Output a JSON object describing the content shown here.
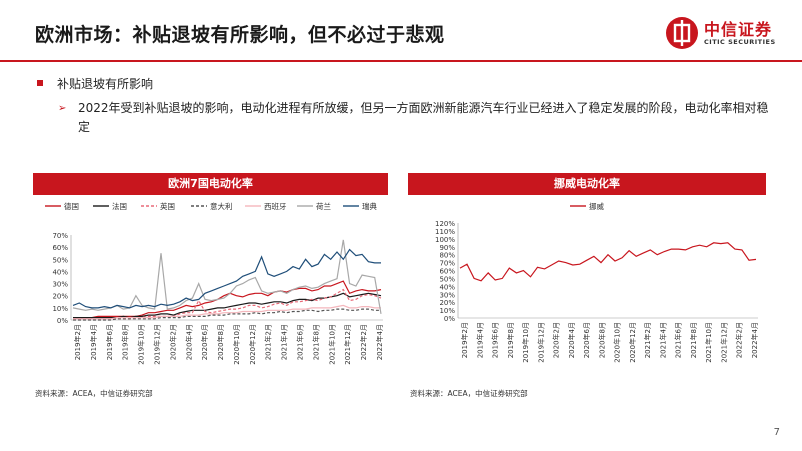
{
  "header": {
    "title": "欧洲市场：补贴退坡有所影响，但不必过于悲观",
    "logo_cn": "中信证券",
    "logo_en": "CITIC SECURITIES"
  },
  "bullets": {
    "level1": "补贴退坡有所影响",
    "level2": "2022年受到补贴退坡的影响，电动化进程有所放缓，但另一方面欧洲新能源汽车行业已经进入了稳定发展的阶段，电动化率相对稳定"
  },
  "left_chart": {
    "header": "欧洲7国电动化率",
    "source": "资料来源：ACEA，中信证券研究部"
  },
  "right_chart": {
    "header": "挪威电动化率",
    "source": "资料来源：ACEA，中信证券研究部"
  },
  "page_number": "7",
  "colors": {
    "brand_red": "#c8161e"
  },
  "chart_data": [
    {
      "type": "line",
      "title": "欧洲7国电动化率",
      "xlabel": "",
      "ylabel": "",
      "ylim": [
        0,
        70
      ],
      "yticks": [
        "0%",
        "10%",
        "20%",
        "30%",
        "40%",
        "50%",
        "60%",
        "70%"
      ],
      "x_tick_labels": [
        "2019年2月",
        "2019年4月",
        "2019年6月",
        "2019年8月",
        "2019年10月",
        "2019年12月",
        "2020年2月",
        "2020年4月",
        "2020年6月",
        "2020年8月",
        "2020年10月",
        "2020年12月",
        "2021年2月",
        "2021年4月",
        "2021年6月",
        "2021年8月",
        "2021年10月",
        "2021年12月",
        "2022年2月",
        "2022年4月"
      ],
      "legend_position": "top",
      "series": [
        {
          "name": "德国",
          "color": "#c8161e",
          "dash": "solid",
          "values": [
            2,
            2,
            2,
            2,
            3,
            3,
            3,
            3,
            3,
            3,
            3,
            4,
            6,
            6,
            7,
            8,
            8,
            10,
            12,
            11,
            12,
            14,
            15,
            17,
            20,
            22,
            20,
            19,
            21,
            22,
            22,
            20,
            23,
            24,
            23,
            25,
            26,
            26,
            24,
            25,
            28,
            28,
            30,
            32,
            22,
            24,
            25,
            24,
            24,
            25
          ]
        },
        {
          "name": "法国",
          "color": "#1a1a1a",
          "dash": "solid",
          "values": [
            2,
            2,
            2,
            2,
            2,
            2,
            2,
            2,
            3,
            2,
            3,
            3,
            4,
            4,
            5,
            5,
            4,
            6,
            7,
            8,
            8,
            8,
            9,
            10,
            10,
            11,
            12,
            13,
            14,
            14,
            13,
            14,
            15,
            15,
            14,
            16,
            17,
            17,
            16,
            18,
            18,
            19,
            20,
            22,
            19,
            20,
            21,
            22,
            21,
            20
          ]
        },
        {
          "name": "英国",
          "color": "#e86a78",
          "dash": "dash",
          "values": [
            1,
            1,
            1,
            1,
            1,
            1,
            1,
            1,
            1,
            1,
            2,
            2,
            3,
            3,
            3,
            3,
            3,
            5,
            6,
            6,
            16,
            7,
            6,
            7,
            8,
            9,
            9,
            10,
            12,
            12,
            10,
            11,
            13,
            14,
            12,
            15,
            15,
            16,
            17,
            16,
            18,
            19,
            22,
            25,
            16,
            17,
            20,
            21,
            20,
            18
          ]
        },
        {
          "name": "意大利",
          "color": "#555555",
          "dash": "dash",
          "values": [
            0,
            0,
            0,
            0,
            0,
            0,
            0,
            1,
            1,
            1,
            1,
            1,
            1,
            1,
            2,
            2,
            2,
            2,
            3,
            3,
            3,
            3,
            4,
            4,
            4,
            5,
            5,
            5,
            5,
            6,
            5,
            6,
            6,
            7,
            6,
            7,
            7,
            8,
            8,
            7,
            8,
            8,
            9,
            9,
            8,
            8,
            9,
            9,
            8,
            8
          ]
        },
        {
          "name": "西班牙",
          "color": "#f4b6bc",
          "dash": "solid",
          "values": [
            1,
            1,
            1,
            1,
            1,
            1,
            1,
            2,
            2,
            2,
            2,
            2,
            2,
            2,
            3,
            3,
            3,
            3,
            4,
            4,
            4,
            5,
            5,
            5,
            6,
            6,
            6,
            7,
            7,
            7,
            7,
            8,
            8,
            8,
            8,
            9,
            9,
            9,
            10,
            10,
            10,
            10,
            11,
            12,
            10,
            10,
            11,
            11,
            10,
            10
          ]
        },
        {
          "name": "荷兰",
          "color": "#a8a8a8",
          "dash": "solid",
          "values": [
            10,
            9,
            8,
            9,
            8,
            9,
            10,
            12,
            9,
            10,
            20,
            12,
            10,
            9,
            55,
            9,
            10,
            12,
            16,
            18,
            30,
            17,
            16,
            17,
            18,
            22,
            28,
            30,
            33,
            35,
            24,
            22,
            23,
            24,
            22,
            25,
            27,
            28,
            26,
            27,
            30,
            32,
            34,
            66,
            30,
            28,
            37,
            36,
            35,
            5
          ]
        },
        {
          "name": "瑞典",
          "color": "#1f4e79",
          "dash": "solid",
          "values": [
            12,
            14,
            11,
            10,
            10,
            11,
            10,
            12,
            11,
            10,
            12,
            11,
            12,
            11,
            13,
            12,
            13,
            15,
            18,
            16,
            17,
            22,
            24,
            26,
            28,
            30,
            32,
            36,
            38,
            40,
            52,
            38,
            36,
            38,
            40,
            44,
            42,
            50,
            44,
            46,
            54,
            50,
            56,
            50,
            58,
            53,
            54,
            48,
            47,
            47
          ]
        }
      ]
    },
    {
      "type": "line",
      "title": "挪威电动化率",
      "xlabel": "",
      "ylabel": "",
      "ylim": [
        0,
        120
      ],
      "yticks": [
        "0%",
        "10%",
        "20%",
        "30%",
        "40%",
        "50%",
        "60%",
        "70%",
        "80%",
        "90%",
        "100%",
        "110%",
        "120%"
      ],
      "x_tick_labels": [
        "2019年2月",
        "2019年4月",
        "2019年6月",
        "2019年8月",
        "2019年10月",
        "2019年12月",
        "2020年2月",
        "2020年4月",
        "2020年6月",
        "2020年8月",
        "2020年10月",
        "2020年12月",
        "2021年2月",
        "2021年4月",
        "2021年6月",
        "2021年8月",
        "2021年10月",
        "2021年12月",
        "2022年2月",
        "2022年4月"
      ],
      "legend_position": "top",
      "series": [
        {
          "name": "挪威",
          "color": "#c8161e",
          "dash": "solid",
          "values": [
            63,
            68,
            50,
            47,
            57,
            48,
            50,
            63,
            57,
            60,
            52,
            64,
            62,
            67,
            72,
            70,
            67,
            68,
            73,
            78,
            70,
            80,
            72,
            76,
            85,
            78,
            82,
            86,
            80,
            84,
            87,
            87,
            86,
            90,
            92,
            90,
            95,
            94,
            95,
            87,
            86,
            73,
            74
          ]
        }
      ]
    }
  ]
}
